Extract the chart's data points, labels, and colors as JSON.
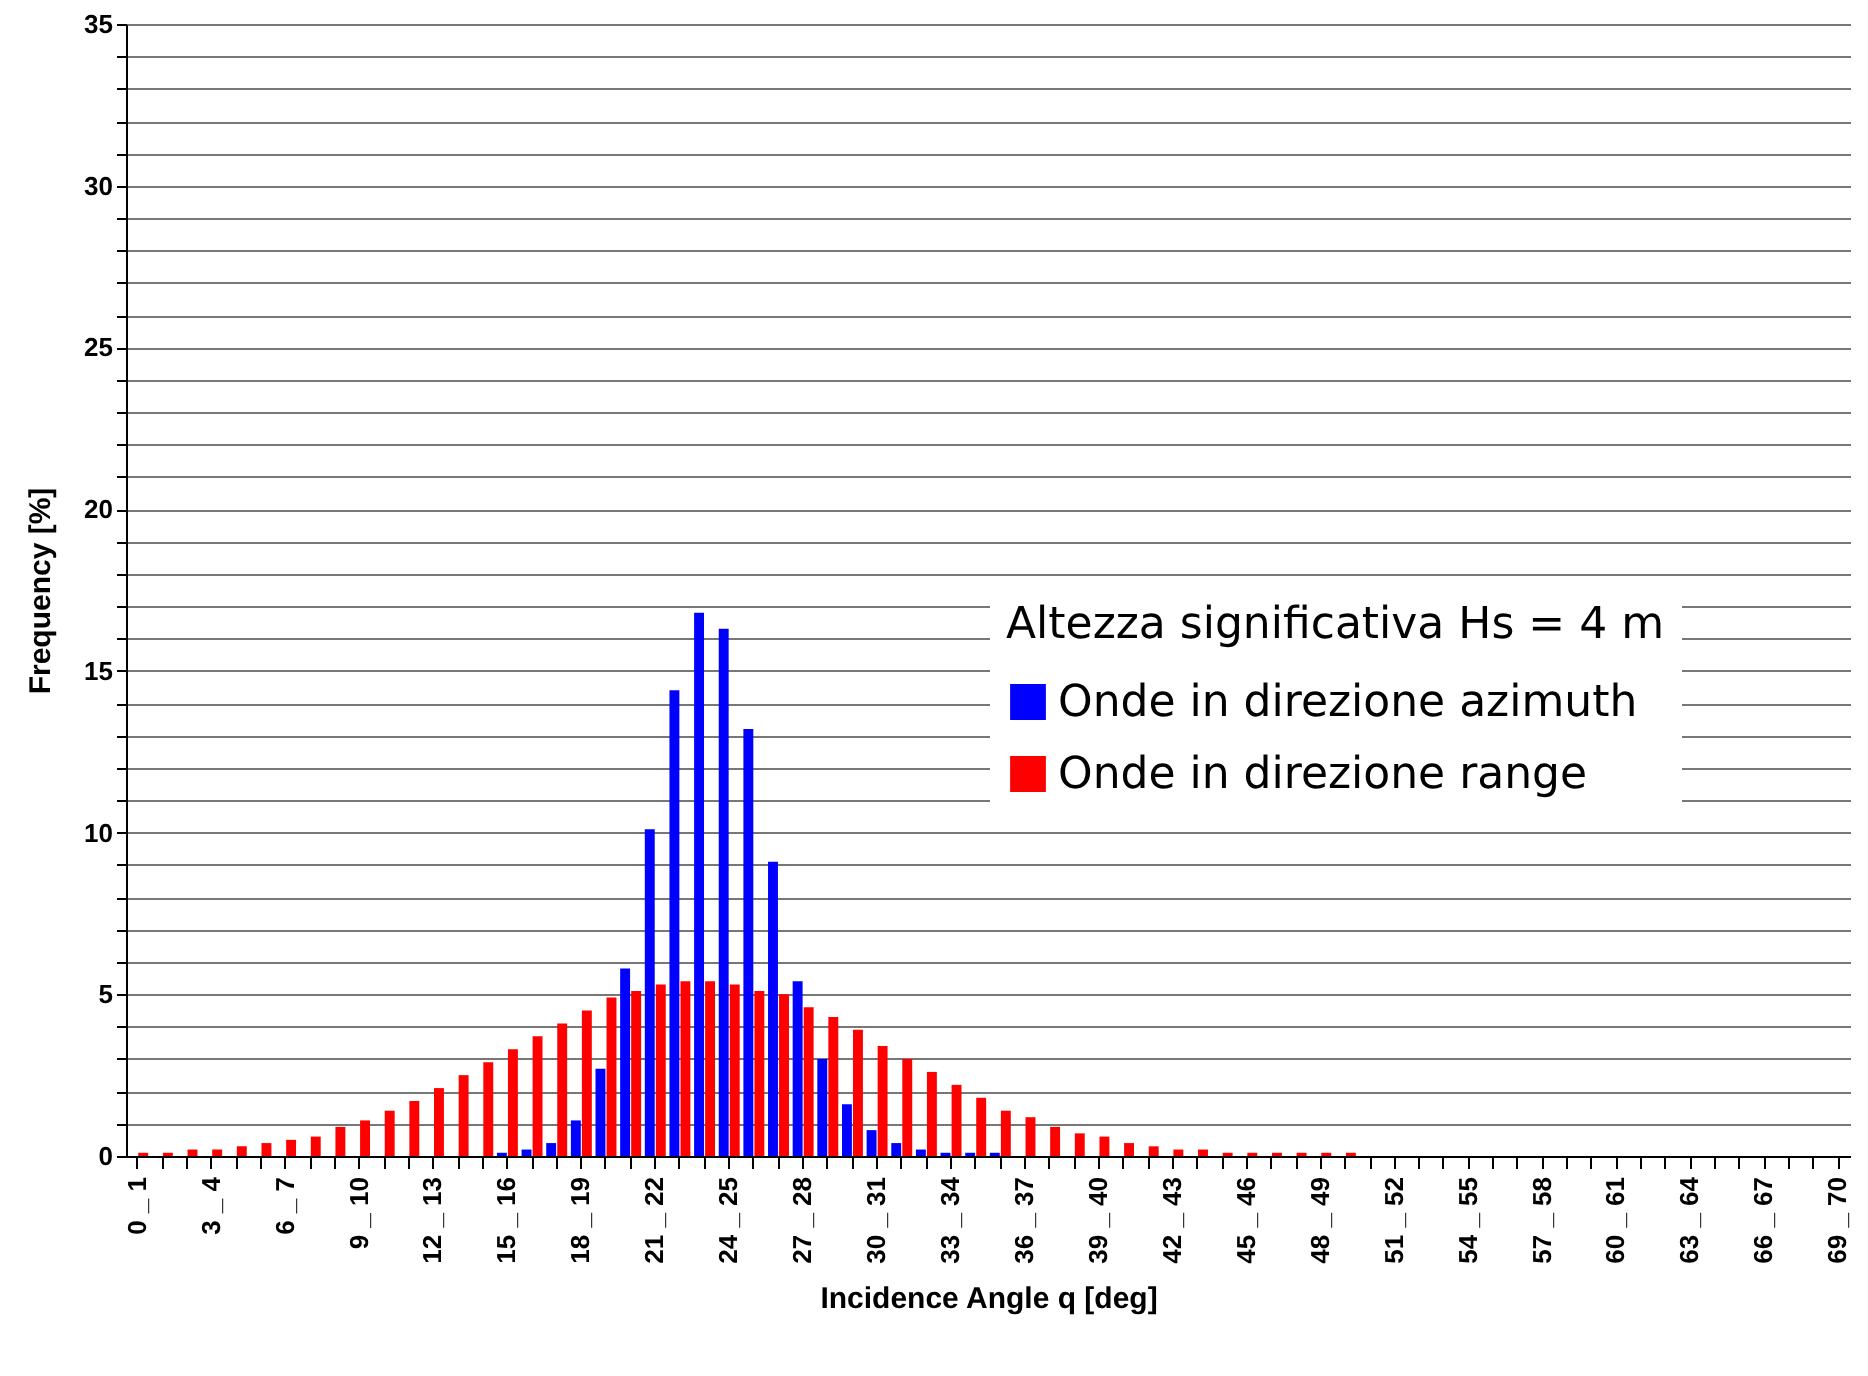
{
  "chart_data": {
    "type": "bar",
    "xlabel": "Incidence Angle q  [deg]",
    "ylabel": "Frequency [%]",
    "legend_title": "Altezza significativa Hs = 4 m",
    "categories": [
      "0 _ 1",
      null,
      null,
      "3 _ 4",
      null,
      null,
      "6 _ 7",
      null,
      null,
      "9 _ 10",
      null,
      null,
      "12 _ 13",
      null,
      null,
      "15 _ 16",
      null,
      null,
      "18 _ 19",
      null,
      null,
      "21 _ 22",
      null,
      null,
      "24 _ 25",
      null,
      null,
      "27 _ 28",
      null,
      null,
      "30 _ 31",
      null,
      null,
      "33 _ 34",
      null,
      null,
      "36 _ 37",
      null,
      null,
      "39 _ 40",
      null,
      null,
      "42 _ 43",
      null,
      null,
      "45 _ 46",
      null,
      null,
      "48 _ 49",
      null,
      null,
      "51 _ 52",
      null,
      null,
      "54 _ 55",
      null,
      null,
      "57 _ 58",
      null,
      null,
      "60 _ 61",
      null,
      null,
      "63 _ 64",
      null,
      null,
      "66 _ 67",
      null,
      null,
      "69 _ 70"
    ],
    "series": [
      {
        "name": "Onde in direzione azimuth",
        "color": "#0000ff",
        "values": [
          0,
          0,
          0,
          0,
          0,
          0,
          0,
          0,
          0,
          0,
          0,
          0,
          0,
          0,
          0,
          0.1,
          0.2,
          0.4,
          1.1,
          2.7,
          5.8,
          10.1,
          14.4,
          16.8,
          16.3,
          13.2,
          9.1,
          5.4,
          3,
          1.6,
          0.8,
          0.4,
          0.2,
          0.1,
          0.1,
          0.1,
          0,
          0,
          0,
          0,
          0,
          0,
          0,
          0,
          0,
          0,
          0,
          0,
          0,
          0,
          0,
          0,
          0,
          0,
          0,
          0,
          0,
          0,
          0,
          0,
          0,
          0,
          0,
          0,
          0,
          0,
          0,
          0,
          0,
          0
        ]
      },
      {
        "name": "Onde in direzione range",
        "color": "#ff0000",
        "values": [
          0.1,
          0.1,
          0.2,
          0.2,
          0.3,
          0.4,
          0.5,
          0.6,
          0.9,
          1.1,
          1.4,
          1.7,
          2.1,
          2.5,
          2.9,
          3.3,
          3.7,
          4.1,
          4.5,
          4.9,
          5.1,
          5.3,
          5.4,
          5.4,
          5.3,
          5.1,
          5,
          4.6,
          4.3,
          3.9,
          3.4,
          3,
          2.6,
          2.2,
          1.8,
          1.4,
          1.2,
          0.9,
          0.7,
          0.6,
          0.4,
          0.3,
          0.2,
          0.2,
          0.1,
          0.1,
          0.1,
          0.1,
          0.1,
          0.1,
          0,
          0,
          0,
          0,
          0,
          0,
          0,
          0,
          0,
          0,
          0,
          0,
          0,
          0,
          0,
          0,
          0,
          0,
          0,
          0
        ]
      }
    ],
    "ylim": [
      0,
      35
    ],
    "yticks": [
      0,
      {
        "value": 1,
        "label": null
      },
      {
        "value": 2,
        "label": null
      },
      {
        "value": 3,
        "label": null
      },
      {
        "value": 4,
        "label": null
      },
      5,
      {
        "value": 6,
        "label": null
      },
      {
        "value": 7,
        "label": null
      },
      {
        "value": 8,
        "label": null
      },
      {
        "value": 9,
        "label": null
      },
      10,
      {
        "value": 11,
        "label": null
      },
      {
        "value": 12,
        "label": null
      },
      {
        "value": 13,
        "label": null
      },
      {
        "value": 14,
        "label": null
      },
      15,
      {
        "value": 16,
        "label": null
      },
      {
        "value": 17,
        "label": null
      },
      {
        "value": 18,
        "label": null
      },
      {
        "value": 19,
        "label": null
      },
      20,
      {
        "value": 21,
        "label": null
      },
      {
        "value": 22,
        "label": null
      },
      {
        "value": 23,
        "label": null
      },
      {
        "value": 24,
        "label": null
      },
      25,
      {
        "value": 26,
        "label": null
      },
      {
        "value": 27,
        "label": null
      },
      {
        "value": 28,
        "label": null
      },
      {
        "value": 29,
        "label": null
      },
      30,
      {
        "value": 31,
        "label": null
      },
      {
        "value": 32,
        "label": null
      },
      {
        "value": 33,
        "label": null
      },
      {
        "value": 34,
        "label": null
      },
      35
    ],
    "grid": "y",
    "legend": "right"
  }
}
